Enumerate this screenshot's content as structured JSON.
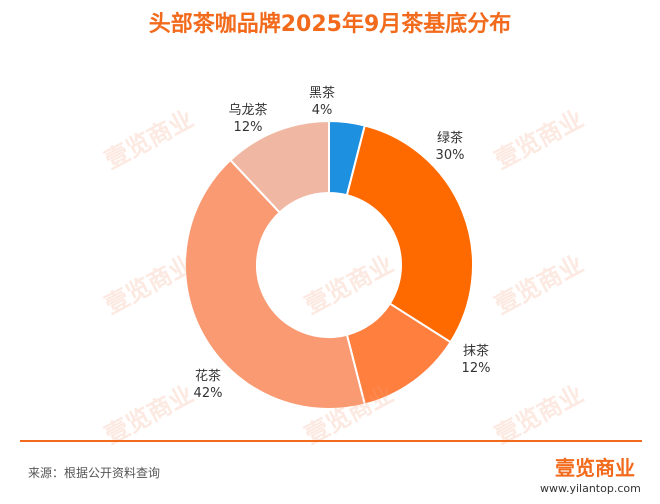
{
  "title": "头部茶咖品牌2025年9月茶基底分布",
  "source": "来源：根据公开资料查询",
  "brand": {
    "logo_text": "壹览商业",
    "url": "www.yilantop.com",
    "watermark_text": "壹览商业",
    "accent_color": "#f26b1d"
  },
  "chart_data": {
    "type": "pie",
    "donut": true,
    "categories": [
      "黑茶",
      "绿茶",
      "抹茶",
      "花茶",
      "乌龙茶"
    ],
    "values": [
      4,
      30,
      12,
      42,
      12
    ],
    "value_labels": [
      "4%",
      "30%",
      "12%",
      "42%",
      "12%"
    ],
    "colors": [
      "#1e90e0",
      "#ff6a00",
      "#ff7f3f",
      "#f99a72",
      "#f0b8a3"
    ],
    "legend": "none"
  }
}
